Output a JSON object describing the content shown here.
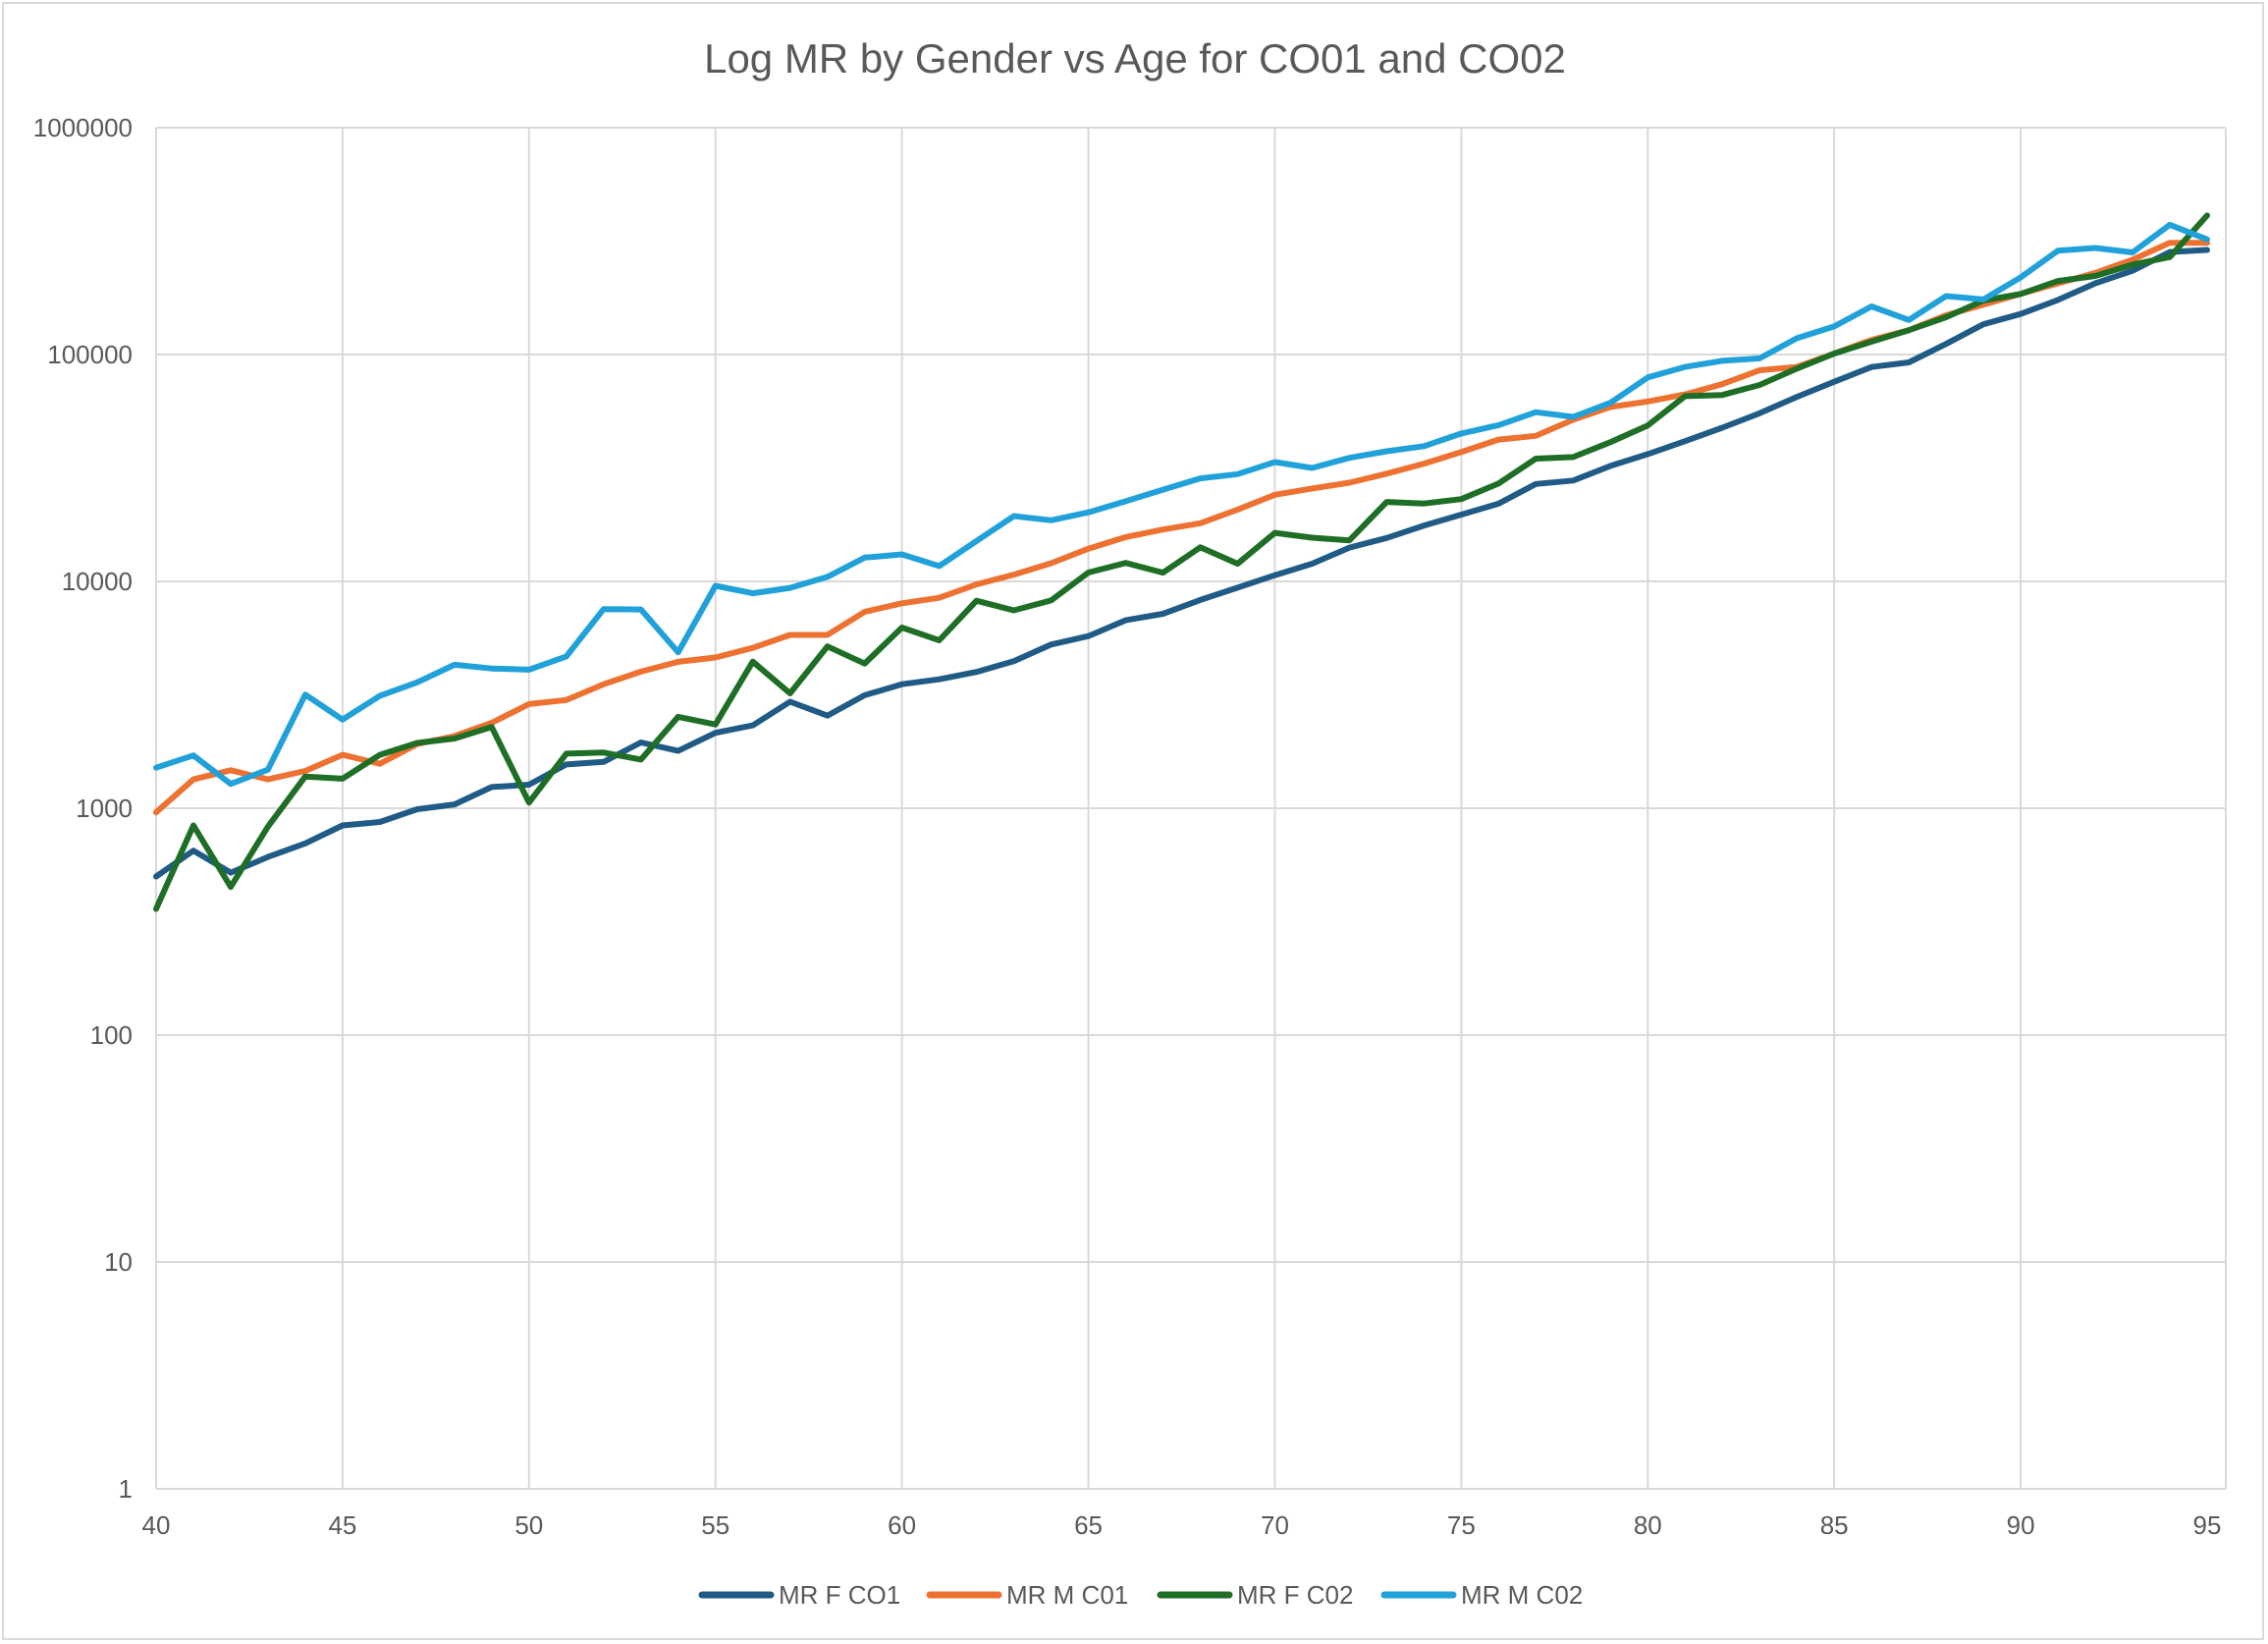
{
  "chart_data": {
    "type": "line",
    "title": "Log MR by Gender vs Age for CO01 and CO02",
    "xlabel": "",
    "ylabel": "",
    "yscale": "log",
    "ylim": [
      1,
      1000000
    ],
    "xlim": [
      40,
      95.5
    ],
    "grid": "on",
    "legend_position": "bottom",
    "x_ticks": [
      40,
      45,
      50,
      55,
      60,
      65,
      70,
      75,
      80,
      85,
      90,
      95
    ],
    "x_tick_labels": [
      "40",
      "45",
      "50",
      "55",
      "60",
      "65",
      "70",
      "75",
      "80",
      "85",
      "90",
      "95"
    ],
    "y_ticks": [
      1,
      10,
      100,
      1000,
      10000,
      100000,
      1000000
    ],
    "y_tick_labels": [
      "1",
      "10",
      "100",
      "1000",
      "10000",
      "100000",
      "1000000"
    ],
    "x": [
      40,
      41,
      42,
      43,
      44,
      45,
      46,
      47,
      48,
      49,
      50,
      51,
      52,
      53,
      54,
      55,
      56,
      57,
      58,
      59,
      60,
      61,
      62,
      63,
      64,
      65,
      66,
      67,
      68,
      69,
      70,
      71,
      72,
      73,
      74,
      75,
      76,
      77,
      78,
      79,
      80,
      81,
      82,
      83,
      84,
      85,
      86,
      87,
      88,
      89,
      90,
      91,
      92,
      93,
      94,
      95
    ],
    "series": [
      {
        "name": "MR F CO1",
        "color": "#1f5b85",
        "values": [
          500,
          650,
          520,
          610,
          700,
          840,
          870,
          990,
          1040,
          1240,
          1270,
          1560,
          1600,
          1950,
          1790,
          2150,
          2320,
          2950,
          2560,
          3150,
          3520,
          3700,
          3990,
          4450,
          5270,
          5740,
          6740,
          7200,
          8280,
          9380,
          10650,
          11970,
          14090,
          15530,
          17640,
          19700,
          22020,
          26870,
          27840,
          32300,
          36400,
          41500,
          47600,
          55100,
          65100,
          75900,
          88100,
          92300,
          111400,
          135900,
          151000,
          174000,
          206000,
          234000,
          283000,
          289000
        ]
      },
      {
        "name": "MR M C01",
        "color": "#ed7130",
        "values": [
          960,
          1340,
          1470,
          1340,
          1460,
          1720,
          1570,
          1920,
          2080,
          2380,
          2880,
          3000,
          3520,
          4000,
          4420,
          4620,
          5090,
          5810,
          5810,
          7340,
          8010,
          8470,
          9700,
          10710,
          12030,
          13940,
          15670,
          16930,
          18040,
          20720,
          24090,
          25670,
          27230,
          29850,
          33040,
          37200,
          42200,
          43800,
          51600,
          58700,
          62100,
          66700,
          74100,
          85300,
          88200,
          101000,
          116000,
          128000,
          149000,
          166000,
          185000,
          206000,
          229000,
          262000,
          311000,
          311000
        ]
      },
      {
        "name": "MR F C02",
        "color": "#1e6e25",
        "values": [
          360,
          840,
          450,
          830,
          1380,
          1350,
          1720,
          1940,
          2030,
          2280,
          1060,
          1740,
          1760,
          1640,
          2530,
          2340,
          4430,
          3210,
          5170,
          4340,
          6260,
          5500,
          8220,
          7450,
          8240,
          10940,
          12060,
          10930,
          14130,
          11970,
          16370,
          15580,
          15170,
          22390,
          22040,
          23060,
          27010,
          34770,
          35310,
          41100,
          48700,
          65500,
          66300,
          73400,
          86700,
          101000,
          114000,
          128000,
          146000,
          173000,
          185000,
          211000,
          222000,
          249000,
          269000,
          410000
        ]
      },
      {
        "name": "MR M C02",
        "color": "#21a1d9",
        "values": [
          1510,
          1710,
          1280,
          1480,
          3170,
          2460,
          3130,
          3590,
          4290,
          4130,
          4080,
          4670,
          7550,
          7520,
          4870,
          9560,
          8860,
          9360,
          10470,
          12730,
          13160,
          11680,
          15070,
          19400,
          18590,
          20150,
          22560,
          25380,
          28440,
          29710,
          33560,
          31620,
          35050,
          37450,
          39470,
          44890,
          48840,
          55720,
          53100,
          61300,
          79300,
          88200,
          93800,
          96200,
          118000,
          133000,
          163000,
          142000,
          181000,
          175000,
          219000,
          287000,
          295000,
          282000,
          373000,
          322000
        ]
      }
    ]
  }
}
